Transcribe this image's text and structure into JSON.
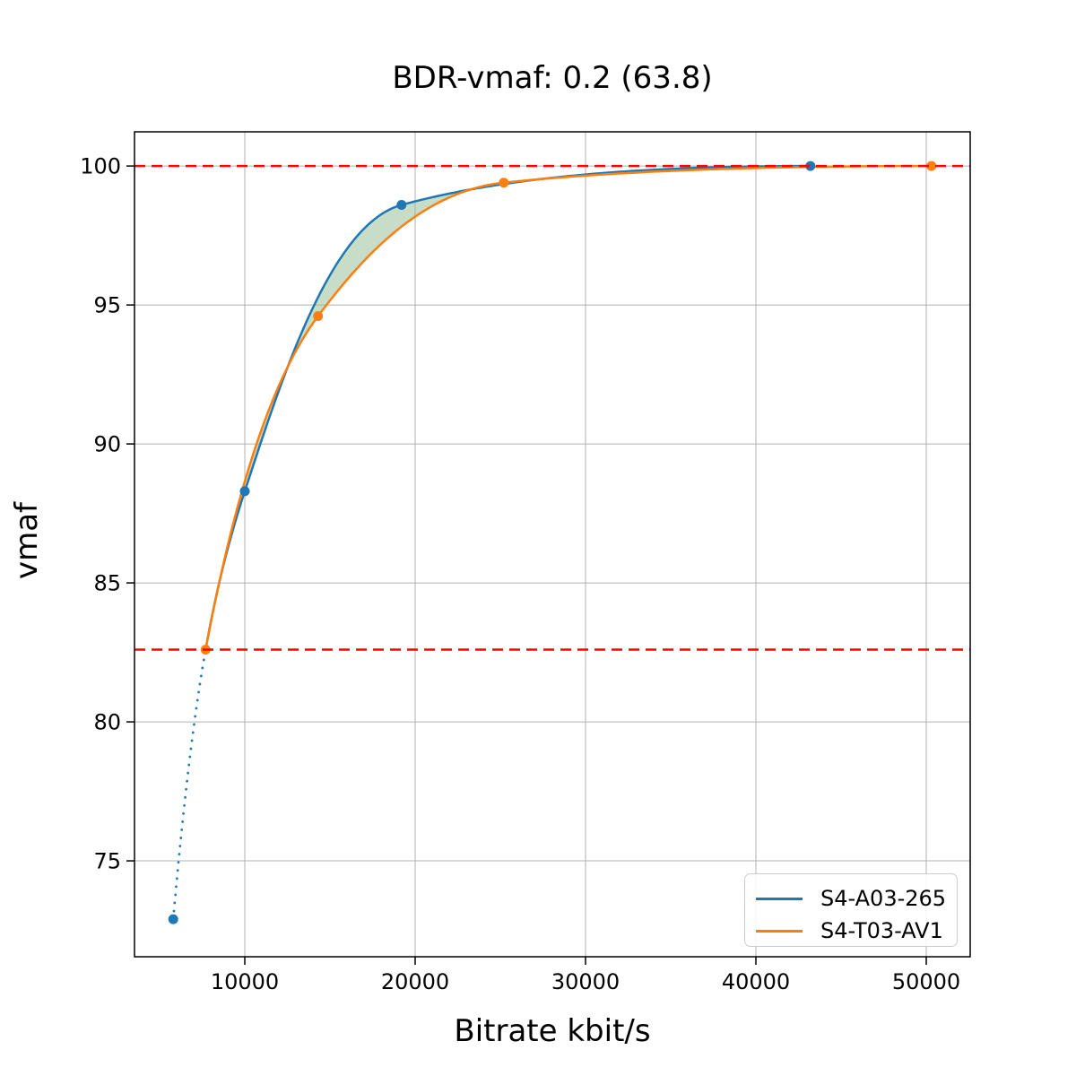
{
  "chart_data": {
    "type": "line",
    "title": "BDR-vmaf: 0.2 (63.8)",
    "xlabel": "Bitrate kbit/s",
    "ylabel": "vmaf",
    "xlim": [
      3526,
      52579
    ],
    "ylim": [
      71.55,
      101.23
    ],
    "x_ticks": [
      10000,
      20000,
      30000,
      40000,
      50000
    ],
    "y_ticks": [
      75,
      80,
      85,
      90,
      95,
      100
    ],
    "grid": true,
    "grid_color": "#b0b0b0",
    "interpolation": "pchip-log-x",
    "legend_position": "lower right",
    "series": [
      {
        "name": "S4-A03-265",
        "color": "#1f77b4",
        "points": [
          [
            5800,
            72.9
          ],
          [
            10000,
            88.3
          ],
          [
            19200,
            98.6
          ],
          [
            43200,
            100.0
          ]
        ],
        "curve_anchor": [
          7700,
          82.6
        ],
        "dotted_below_x": 7700
      },
      {
        "name": "S4-T03-AV1",
        "color": "#ff7f0e",
        "points": [
          [
            7700,
            82.6
          ],
          [
            14300,
            94.6
          ],
          [
            25200,
            99.4
          ],
          [
            50300,
            100.0
          ]
        ]
      }
    ],
    "reference_lines": {
      "style": "dashed",
      "color": "#ff0000",
      "values": [
        100.0,
        82.6
      ]
    },
    "fill_between": {
      "color": "#8fbc8f",
      "opacity": 0.5,
      "x_range": [
        7700,
        43200
      ]
    }
  }
}
